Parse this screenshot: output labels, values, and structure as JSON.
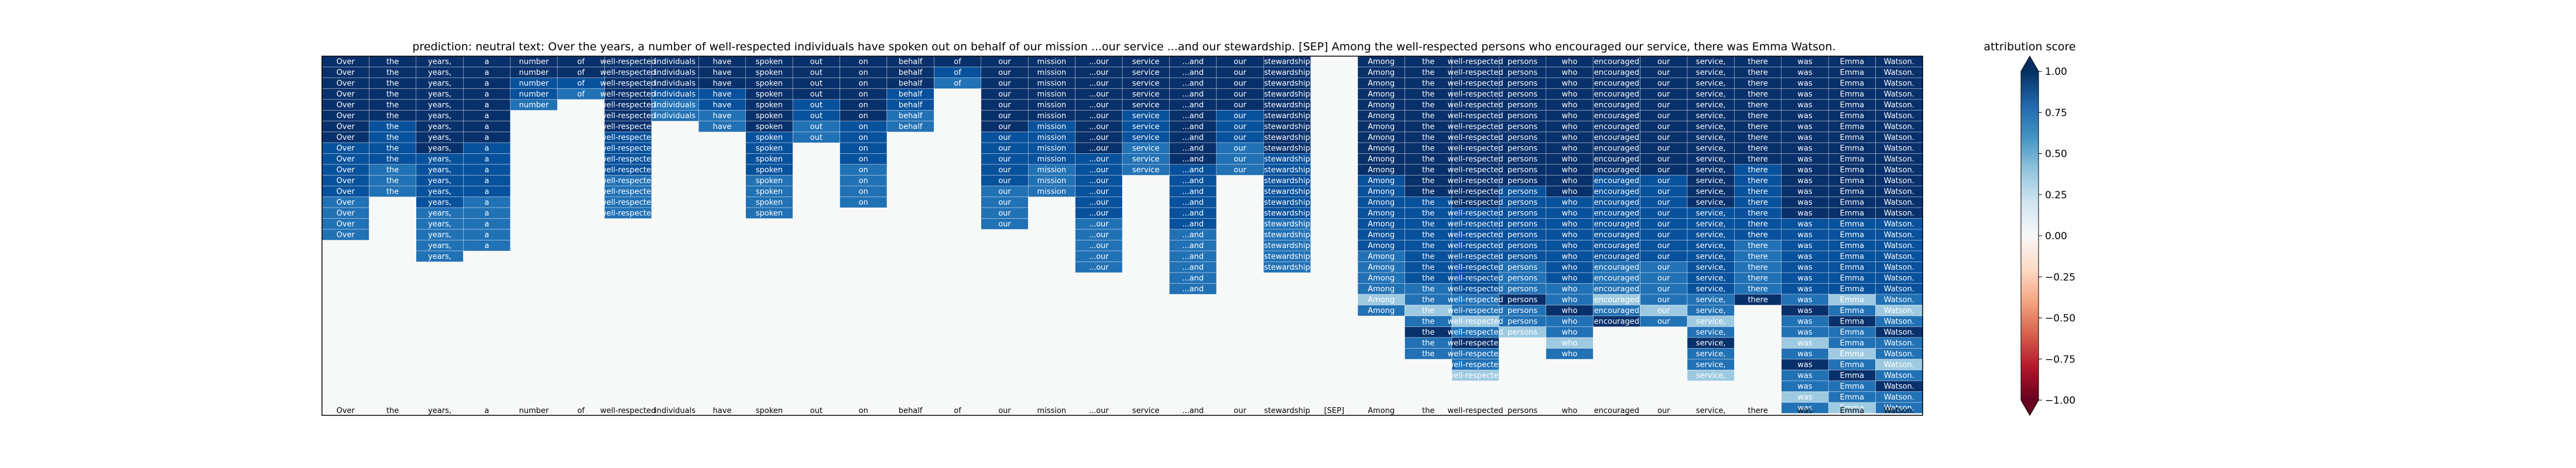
{
  "chart_data": {
    "type": "heatmap",
    "title": "prediction:  neutral     text:  Over the years, a number of well-respected individuals have spoken out on behalf of our mission ...our service ...and our stewardship. [SEP] Among the well-respected persons who encouraged our service, there was Emma Watson.",
    "tokens": [
      "Over",
      "the",
      "years,",
      "a",
      "number",
      "of",
      "well-respected",
      "individuals",
      "have",
      "spoken",
      "out",
      "on",
      "behalf",
      "of",
      "our",
      "mission",
      "...our",
      "service",
      "...and",
      "our",
      "stewardship",
      "[SEP]",
      "Among",
      "the",
      "well-respected",
      "persons",
      "who",
      "encouraged",
      "our",
      "service,",
      "there",
      "was",
      "Emma",
      "Watson."
    ],
    "column_bottom_row": [
      16,
      12,
      18,
      17,
      4,
      3,
      14,
      5,
      6,
      14,
      7,
      13,
      6,
      2,
      15,
      12,
      19,
      10,
      21,
      10,
      19,
      0,
      23,
      27,
      29,
      25,
      27,
      24,
      24,
      29,
      22,
      32,
      33,
      32
    ],
    "row_count": 33,
    "colorbar": {
      "label": "attribution score",
      "ticks": [
        "1.00",
        "0.75",
        "0.50",
        "0.25",
        "0.00",
        "−0.25",
        "−0.50",
        "−0.75",
        "−1.00"
      ],
      "vmin": -1.0,
      "vmax": 1.0,
      "colormap": "RdBu"
    },
    "colors": {
      "deep_blue": "#08306b",
      "mid_blue": "#2171b5",
      "light_blue": "#9ecae1",
      "masked": "#f7f9f8",
      "deep_red": "#67001f"
    }
  }
}
